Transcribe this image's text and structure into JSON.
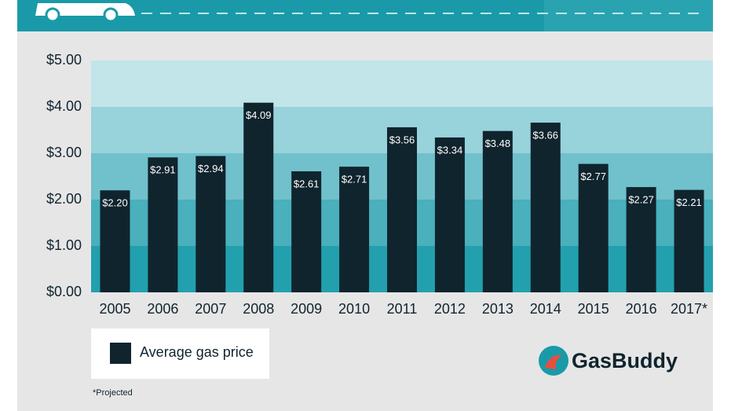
{
  "chart_data": {
    "type": "bar",
    "categories": [
      "2005",
      "2006",
      "2007",
      "2008",
      "2009",
      "2010",
      "2011",
      "2012",
      "2013",
      "2014",
      "2015",
      "2016",
      "2017*"
    ],
    "series": [
      {
        "name": "Average gas price",
        "color": "#10242e",
        "values": [
          2.2,
          2.91,
          2.94,
          4.09,
          2.61,
          2.71,
          3.56,
          3.34,
          3.48,
          3.66,
          2.77,
          2.27,
          2.21
        ],
        "value_labels": [
          "$2.20",
          "$2.91",
          "$2.94",
          "$4.09",
          "$2.61",
          "$2.71",
          "$3.56",
          "$3.34",
          "$3.48",
          "$3.66",
          "$2.77",
          "$2.27",
          "$2.21"
        ]
      }
    ],
    "ylim": [
      0,
      5
    ],
    "yticks": [
      {
        "value": 0,
        "label": "$0.00"
      },
      {
        "value": 1,
        "label": "$1.00"
      },
      {
        "value": 2,
        "label": "$2.00"
      },
      {
        "value": 3,
        "label": "$3.00"
      },
      {
        "value": 4,
        "label": "$4.00"
      },
      {
        "value": 5,
        "label": "$5.00"
      }
    ],
    "band_colors": [
      "#23a0ad",
      "#49b0bc",
      "#70c1cb",
      "#98d2da",
      "#c1e5e9"
    ],
    "footnote": "*Projected",
    "brand": "GasBuddy"
  }
}
